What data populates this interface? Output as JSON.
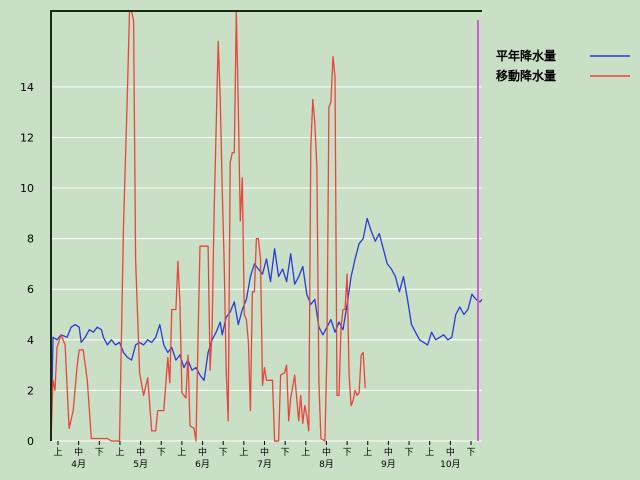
{
  "chart_data": {
    "type": "line",
    "ylim": [
      0,
      17
    ],
    "yticks": [
      0,
      2,
      4,
      6,
      8,
      10,
      12,
      14
    ],
    "grid": true,
    "legend_position": "top-right",
    "x_count": 215,
    "xtick_sub_labels": [
      "上",
      "中",
      "下",
      "上",
      "中",
      "下",
      "上",
      "中",
      "下",
      "上",
      "中",
      "下",
      "上",
      "中",
      "下",
      "上",
      "中",
      "下",
      "上",
      "中",
      "下"
    ],
    "month_labels": [
      "4月",
      "5月",
      "6月",
      "7月",
      "8月",
      "9月",
      "10月"
    ],
    "series": [
      {
        "name": "平年降水量",
        "color": "#2b3bd6",
        "points": [
          [
            0,
            0
          ],
          [
            1,
            4.1
          ],
          [
            3,
            4.0
          ],
          [
            5,
            4.2
          ],
          [
            8,
            4.1
          ],
          [
            10,
            4.5
          ],
          [
            12,
            4.6
          ],
          [
            14,
            4.5
          ],
          [
            15,
            3.9
          ],
          [
            17,
            4.1
          ],
          [
            19,
            4.4
          ],
          [
            21,
            4.3
          ],
          [
            23,
            4.5
          ],
          [
            25,
            4.4
          ],
          [
            26,
            4.1
          ],
          [
            28,
            3.8
          ],
          [
            30,
            4.0
          ],
          [
            32,
            3.8
          ],
          [
            34,
            3.9
          ],
          [
            36,
            3.5
          ],
          [
            38,
            3.3
          ],
          [
            40,
            3.2
          ],
          [
            42,
            3.8
          ],
          [
            44,
            3.9
          ],
          [
            46,
            3.8
          ],
          [
            48,
            4.0
          ],
          [
            50,
            3.9
          ],
          [
            52,
            4.1
          ],
          [
            54,
            4.6
          ],
          [
            56,
            3.8
          ],
          [
            58,
            3.5
          ],
          [
            60,
            3.7
          ],
          [
            62,
            3.2
          ],
          [
            64,
            3.4
          ],
          [
            66,
            2.9
          ],
          [
            68,
            3.2
          ],
          [
            70,
            2.8
          ],
          [
            72,
            2.9
          ],
          [
            74,
            2.6
          ],
          [
            76,
            2.4
          ],
          [
            78,
            3.5
          ],
          [
            80,
            4.0
          ],
          [
            82,
            4.3
          ],
          [
            84,
            4.7
          ],
          [
            85,
            4.2
          ],
          [
            87,
            4.9
          ],
          [
            89,
            5.1
          ],
          [
            91,
            5.5
          ],
          [
            93,
            4.6
          ],
          [
            95,
            5.2
          ],
          [
            97,
            5.6
          ],
          [
            99,
            6.5
          ],
          [
            101,
            7.0
          ],
          [
            103,
            6.8
          ],
          [
            105,
            6.6
          ],
          [
            107,
            7.2
          ],
          [
            109,
            6.3
          ],
          [
            111,
            7.6
          ],
          [
            113,
            6.5
          ],
          [
            115,
            6.8
          ],
          [
            117,
            6.3
          ],
          [
            119,
            7.4
          ],
          [
            121,
            6.2
          ],
          [
            123,
            6.5
          ],
          [
            125,
            6.9
          ],
          [
            127,
            5.8
          ],
          [
            129,
            5.4
          ],
          [
            131,
            5.6
          ],
          [
            133,
            4.5
          ],
          [
            135,
            4.2
          ],
          [
            137,
            4.5
          ],
          [
            139,
            4.8
          ],
          [
            141,
            4.3
          ],
          [
            143,
            4.7
          ],
          [
            145,
            4.4
          ],
          [
            147,
            5.4
          ],
          [
            149,
            6.5
          ],
          [
            151,
            7.2
          ],
          [
            153,
            7.8
          ],
          [
            155,
            8.0
          ],
          [
            157,
            8.8
          ],
          [
            159,
            8.3
          ],
          [
            161,
            7.9
          ],
          [
            163,
            8.2
          ],
          [
            165,
            7.6
          ],
          [
            167,
            7.0
          ],
          [
            169,
            6.8
          ],
          [
            171,
            6.5
          ],
          [
            173,
            5.9
          ],
          [
            175,
            6.5
          ],
          [
            177,
            5.6
          ],
          [
            179,
            4.6
          ],
          [
            181,
            4.3
          ],
          [
            183,
            4.0
          ],
          [
            185,
            3.9
          ],
          [
            187,
            3.8
          ],
          [
            189,
            4.3
          ],
          [
            191,
            4.0
          ],
          [
            193,
            4.1
          ],
          [
            195,
            4.2
          ],
          [
            197,
            4.0
          ],
          [
            199,
            4.1
          ],
          [
            201,
            5.0
          ],
          [
            203,
            5.3
          ],
          [
            205,
            5.0
          ],
          [
            207,
            5.2
          ],
          [
            209,
            5.8
          ],
          [
            211,
            5.6
          ],
          [
            213,
            5.5
          ],
          [
            214,
            5.6
          ]
        ]
      },
      {
        "name": "移動降水量",
        "color": "#e8453c",
        "points": [
          [
            0,
            0
          ],
          [
            1,
            2.4
          ],
          [
            2,
            2.0
          ],
          [
            3,
            3.7
          ],
          [
            5,
            4.2
          ],
          [
            7,
            3.8
          ],
          [
            9,
            0.5
          ],
          [
            11,
            1.2
          ],
          [
            13,
            3.0
          ],
          [
            14,
            3.6
          ],
          [
            16,
            3.6
          ],
          [
            18,
            2.4
          ],
          [
            20,
            0.1
          ],
          [
            24,
            0.1
          ],
          [
            28,
            0.1
          ],
          [
            30,
            0.0
          ],
          [
            34,
            0.0
          ],
          [
            36,
            8.5
          ],
          [
            38,
            13.9
          ],
          [
            39,
            17.0
          ],
          [
            40,
            17.0
          ],
          [
            41,
            16.6
          ],
          [
            42,
            7.2
          ],
          [
            44,
            2.7
          ],
          [
            46,
            1.8
          ],
          [
            48,
            2.5
          ],
          [
            50,
            0.4
          ],
          [
            52,
            0.4
          ],
          [
            53,
            1.2
          ],
          [
            56,
            1.2
          ],
          [
            58,
            3.3
          ],
          [
            59,
            2.3
          ],
          [
            60,
            5.2
          ],
          [
            62,
            5.2
          ],
          [
            63,
            7.1
          ],
          [
            64,
            5.5
          ],
          [
            65,
            1.9
          ],
          [
            67,
            1.7
          ],
          [
            68,
            3.4
          ],
          [
            69,
            0.6
          ],
          [
            71,
            0.5
          ],
          [
            72,
            0.0
          ],
          [
            73,
            4.0
          ],
          [
            74,
            7.7
          ],
          [
            78,
            7.7
          ],
          [
            79,
            2.8
          ],
          [
            80,
            4.4
          ],
          [
            81,
            9.0
          ],
          [
            82,
            12.3
          ],
          [
            83,
            15.8
          ],
          [
            84,
            13.6
          ],
          [
            85,
            10.0
          ],
          [
            86,
            7.0
          ],
          [
            87,
            2.8
          ],
          [
            88,
            0.8
          ],
          [
            89,
            11.0
          ],
          [
            90,
            11.4
          ],
          [
            91,
            11.4
          ],
          [
            92,
            17.0
          ],
          [
            93,
            13.2
          ],
          [
            94,
            8.7
          ],
          [
            95,
            10.4
          ],
          [
            96,
            5.0
          ],
          [
            97,
            4.8
          ],
          [
            98,
            3.9
          ],
          [
            99,
            1.2
          ],
          [
            100,
            5.9
          ],
          [
            101,
            5.9
          ],
          [
            102,
            8.0
          ],
          [
            103,
            8.0
          ],
          [
            104,
            7.2
          ],
          [
            105,
            2.2
          ],
          [
            106,
            2.9
          ],
          [
            107,
            2.4
          ],
          [
            110,
            2.4
          ],
          [
            111,
            0.0
          ],
          [
            113,
            0.0
          ],
          [
            114,
            2.6
          ],
          [
            116,
            2.7
          ],
          [
            117,
            3.0
          ],
          [
            118,
            0.8
          ],
          [
            119,
            1.7
          ],
          [
            121,
            2.6
          ],
          [
            123,
            0.8
          ],
          [
            124,
            1.8
          ],
          [
            125,
            0.7
          ],
          [
            126,
            1.4
          ],
          [
            127,
            1.0
          ],
          [
            128,
            0.4
          ],
          [
            129,
            11.6
          ],
          [
            130,
            13.5
          ],
          [
            131,
            12.6
          ],
          [
            132,
            10.8
          ],
          [
            133,
            2.3
          ],
          [
            134,
            0.1
          ],
          [
            136,
            0.0
          ],
          [
            137,
            3.4
          ],
          [
            138,
            13.2
          ],
          [
            139,
            13.4
          ],
          [
            140,
            15.2
          ],
          [
            141,
            14.4
          ],
          [
            142,
            1.8
          ],
          [
            143,
            1.8
          ],
          [
            144,
            4.5
          ],
          [
            145,
            5.2
          ],
          [
            146,
            5.2
          ],
          [
            147,
            6.6
          ],
          [
            148,
            2.6
          ],
          [
            149,
            1.4
          ],
          [
            150,
            1.6
          ],
          [
            151,
            2.0
          ],
          [
            152,
            1.8
          ],
          [
            153,
            1.9
          ],
          [
            154,
            3.4
          ],
          [
            155,
            3.5
          ],
          [
            156,
            2.1
          ]
        ]
      }
    ]
  }
}
